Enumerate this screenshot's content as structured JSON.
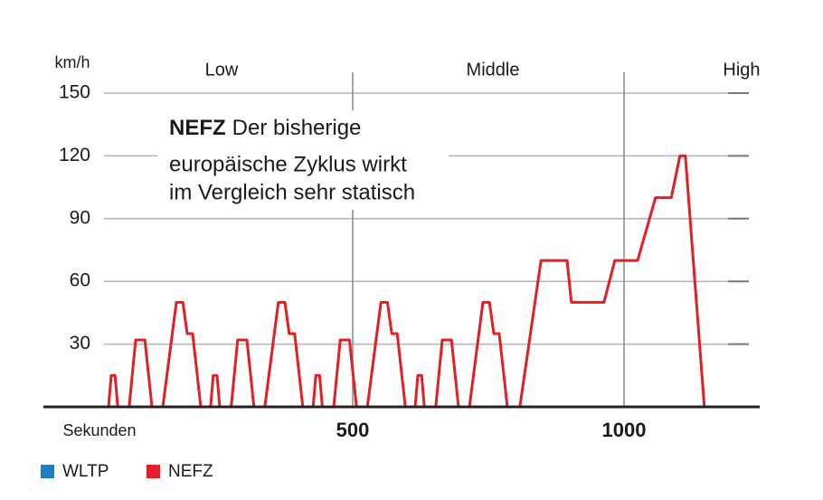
{
  "chart_data": {
    "type": "line",
    "title_bold": "NEFZ",
    "title_lines": [
      "Der bisherige",
      "europäische Zyklus wirkt",
      "im Vergleich sehr statisch"
    ],
    "y_label": "km/h",
    "x_label": "Sekunden",
    "annotations": [
      "Low",
      "Middle",
      "High"
    ],
    "x": [
      50,
      55,
      62,
      67,
      88,
      100,
      117,
      130,
      150,
      175,
      187,
      195,
      205,
      220,
      238,
      243,
      250,
      255,
      276,
      288,
      305,
      318,
      338,
      363,
      375,
      383,
      393,
      408,
      427,
      432,
      439,
      444,
      465,
      477,
      494,
      507,
      527,
      552,
      564,
      572,
      582,
      597,
      615,
      620,
      627,
      632,
      653,
      665,
      682,
      695,
      715,
      740,
      752,
      760,
      770,
      785,
      808,
      847,
      895,
      903,
      963,
      983,
      1025,
      1058,
      1087,
      1103,
      1113,
      1148
    ],
    "series": [
      {
        "name": "WLTP",
        "color": "#1b7fc4",
        "values": [
          null,
          null,
          null,
          null,
          null,
          null,
          null,
          null,
          null,
          null,
          null,
          null,
          null,
          null,
          null,
          null,
          null,
          null,
          null,
          null,
          null,
          null,
          null,
          null,
          null,
          null,
          null,
          null,
          null,
          null,
          null,
          null,
          null,
          null,
          null,
          null,
          null,
          null,
          null,
          null,
          null,
          null,
          null,
          null,
          null,
          null,
          null,
          null,
          null,
          null,
          null,
          null,
          null,
          null,
          null,
          null,
          null,
          null,
          null,
          null,
          null,
          null,
          null,
          null,
          null,
          null,
          null,
          null
        ]
      },
      {
        "name": "NEFZ",
        "color": "#e31e24",
        "values": [
          0,
          15,
          15,
          0,
          0,
          32,
          32,
          0,
          0,
          50,
          50,
          35,
          35,
          0,
          0,
          15,
          15,
          0,
          0,
          32,
          32,
          0,
          0,
          50,
          50,
          35,
          35,
          0,
          0,
          15,
          15,
          0,
          0,
          32,
          32,
          0,
          0,
          50,
          50,
          35,
          35,
          0,
          0,
          15,
          15,
          0,
          0,
          32,
          32,
          0,
          0,
          50,
          50,
          35,
          35,
          0,
          0,
          70,
          70,
          50,
          50,
          70,
          70,
          100,
          100,
          120,
          120,
          0
        ]
      }
    ],
    "xlim": [
      -70,
      1250
    ],
    "ylim": [
      0,
      150
    ],
    "xticks": [
      500,
      1000
    ],
    "yticks": [
      30,
      60,
      90,
      120,
      150
    ],
    "grid": true
  }
}
